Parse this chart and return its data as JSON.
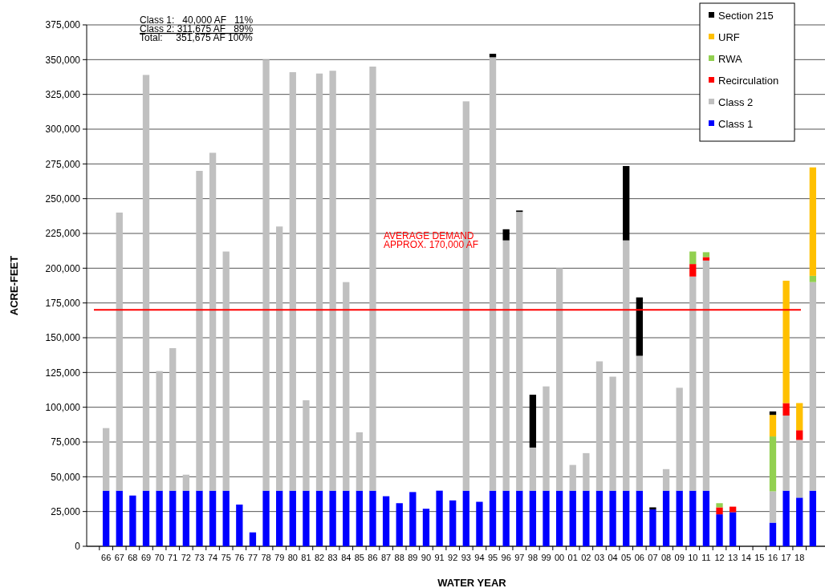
{
  "chart_data": {
    "type": "bar",
    "stacked": true,
    "xlabel": "WATER YEAR",
    "ylabel": "ACRE-FEET",
    "categories": [
      "66",
      "67",
      "68",
      "69",
      "70",
      "71",
      "72",
      "73",
      "74",
      "75",
      "76",
      "77",
      "78",
      "79",
      "80",
      "81",
      "82",
      "83",
      "84",
      "85",
      "86",
      "87",
      "88",
      "89",
      "90",
      "91",
      "92",
      "93",
      "94",
      "95",
      "96",
      "97",
      "98",
      "99",
      "00",
      "01",
      "02",
      "03",
      "04",
      "05",
      "06",
      "07",
      "08",
      "09",
      "10",
      "11",
      "12",
      "13",
      "14",
      "15",
      "16",
      "17",
      "18",
      null
    ],
    "series": [
      {
        "name": "Class 1",
        "color": "#0000ff",
        "values": [
          40000,
          40000,
          36500,
          40000,
          40000,
          40000,
          40000,
          40000,
          40000,
          40000,
          30000,
          10000,
          40000,
          40000,
          40000,
          40000,
          40000,
          40000,
          40000,
          40000,
          40000,
          36000,
          31000,
          39000,
          27000,
          40000,
          33000,
          40000,
          32000,
          40000,
          40000,
          40000,
          40000,
          40000,
          40000,
          40000,
          40000,
          40000,
          40000,
          40000,
          40000,
          26500,
          40000,
          40000,
          40000,
          40000,
          23000,
          24500,
          null,
          null,
          17000,
          40000,
          35000,
          40000
        ]
      },
      {
        "name": "Class 2",
        "color": "#c0c0c0",
        "values": [
          45000,
          200000,
          null,
          299000,
          86000,
          102500,
          11500,
          230000,
          243000,
          172000,
          null,
          null,
          310000,
          190000,
          301000,
          65000,
          300000,
          302000,
          150000,
          42000,
          305000,
          null,
          null,
          null,
          null,
          null,
          null,
          280000,
          null,
          311700,
          180000,
          200500,
          31000,
          75000,
          160000,
          18500,
          27000,
          93000,
          82000,
          180000,
          97000,
          null,
          15500,
          74000,
          154000,
          165500,
          null,
          null,
          null,
          null,
          22500,
          54000,
          41500,
          150000
        ]
      },
      {
        "name": "Recirculation",
        "color": "#ff0000",
        "values": [
          null,
          null,
          null,
          null,
          null,
          null,
          null,
          null,
          null,
          null,
          null,
          null,
          null,
          null,
          null,
          null,
          null,
          null,
          null,
          null,
          null,
          null,
          null,
          null,
          null,
          null,
          null,
          null,
          null,
          null,
          null,
          null,
          null,
          null,
          null,
          null,
          null,
          null,
          null,
          null,
          null,
          null,
          null,
          null,
          9000,
          2500,
          5000,
          4000,
          null,
          null,
          null,
          9000,
          7000,
          null
        ]
      },
      {
        "name": "RWA",
        "color": "#92d050",
        "values": [
          null,
          null,
          null,
          null,
          null,
          null,
          null,
          null,
          null,
          null,
          null,
          null,
          null,
          null,
          null,
          null,
          null,
          null,
          null,
          null,
          null,
          null,
          null,
          null,
          null,
          null,
          null,
          null,
          null,
          null,
          null,
          null,
          null,
          null,
          null,
          null,
          null,
          null,
          null,
          null,
          null,
          null,
          null,
          null,
          9000,
          3500,
          3000,
          null,
          null,
          null,
          39500,
          null,
          null,
          4500
        ]
      },
      {
        "name": "URF",
        "color": "#ffc000",
        "values": [
          null,
          null,
          null,
          null,
          null,
          null,
          null,
          null,
          null,
          null,
          null,
          null,
          null,
          null,
          null,
          null,
          null,
          null,
          null,
          null,
          null,
          null,
          null,
          null,
          null,
          null,
          null,
          null,
          null,
          null,
          null,
          null,
          null,
          null,
          null,
          null,
          null,
          null,
          null,
          null,
          null,
          null,
          null,
          null,
          null,
          null,
          null,
          null,
          null,
          null,
          15500,
          88000,
          19500,
          78000
        ]
      },
      {
        "name": "Section  215",
        "color": "#000000",
        "values": [
          null,
          null,
          null,
          null,
          null,
          null,
          null,
          null,
          null,
          null,
          null,
          null,
          null,
          null,
          null,
          null,
          null,
          null,
          null,
          null,
          null,
          null,
          null,
          null,
          null,
          null,
          null,
          null,
          null,
          2500,
          8000,
          1000,
          38000,
          null,
          null,
          null,
          null,
          null,
          null,
          53500,
          42000,
          1500,
          null,
          null,
          null,
          null,
          null,
          null,
          null,
          null,
          2500,
          null,
          null,
          null
        ]
      }
    ],
    "ylim": [
      0,
      375000
    ],
    "yticks": [
      {
        "value": 0,
        "label": "0"
      },
      {
        "value": 25000,
        "label": "25,000"
      },
      {
        "value": 50000,
        "label": "50,000"
      },
      {
        "value": 75000,
        "label": "75,000"
      },
      {
        "value": 100000,
        "label": "100,000"
      },
      {
        "value": 125000,
        "label": "125,000"
      },
      {
        "value": 150000,
        "label": "150,000"
      },
      {
        "value": 175000,
        "label": "175,000"
      },
      {
        "value": 200000,
        "label": "200,000"
      },
      {
        "value": 225000,
        "label": "225,000"
      },
      {
        "value": 250000,
        "label": "250,000"
      },
      {
        "value": 275000,
        "label": "275,000"
      },
      {
        "value": 300000,
        "label": "300,000"
      },
      {
        "value": 325000,
        "label": "325,000"
      },
      {
        "value": 350000,
        "label": "350,000"
      },
      {
        "value": 375000,
        "label": "375,000"
      }
    ],
    "grid": "y",
    "legend": "top right",
    "ref_lines": [
      {
        "axis": "y",
        "value": 170000,
        "label": "AVERAGE DEMAND\nAPPROX. 170,000 AF",
        "color": "#ff0000"
      }
    ],
    "annotations": [
      "Class 1:   40,000 AF   11%",
      "Class 2: 311,675 AF   89%",
      "Total:     351,675 AF 100%"
    ]
  }
}
